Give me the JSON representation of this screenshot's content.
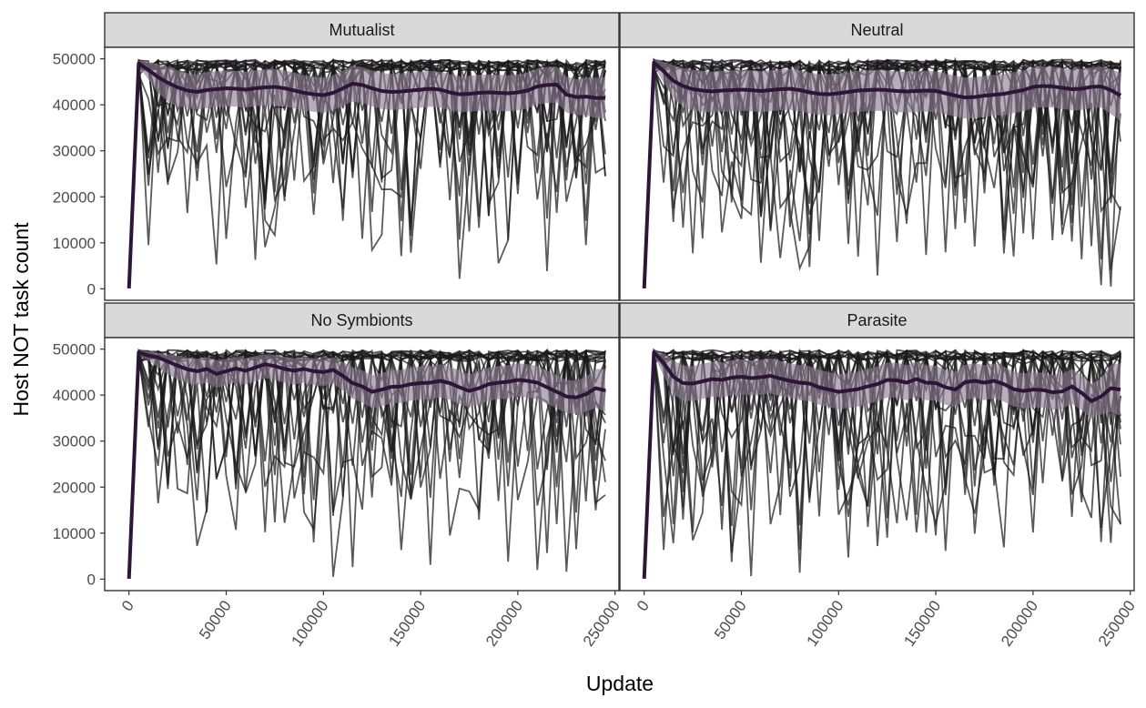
{
  "chart_data": {
    "type": "line",
    "xlabel": "Update",
    "ylabel": "Host NOT task count",
    "xlim": [
      0,
      250000
    ],
    "ylim": [
      0,
      50000
    ],
    "x_ticks": [
      0,
      50000,
      100000,
      150000,
      200000,
      250000
    ],
    "y_ticks": [
      0,
      10000,
      20000,
      30000,
      40000,
      50000
    ],
    "x_tick_labels": [
      "0",
      "50000",
      "100000",
      "150000",
      "200000",
      "250000"
    ],
    "y_tick_labels": [
      "0",
      "10000",
      "20000",
      "30000",
      "40000",
      "50000"
    ],
    "grid": false,
    "facet_layout": "2x2",
    "colors": {
      "mean_line": "#2d1538",
      "ribbon": "#8a7b91",
      "replicate_lines": "#1a1a1a",
      "strip_fill": "#d9d9d9",
      "panel_border": "#333333"
    },
    "panels": [
      {
        "title": "Mutualist",
        "x": [
          0,
          5000,
          10000,
          15000,
          20000,
          25000,
          30000,
          35000,
          40000,
          45000,
          50000,
          55000,
          60000,
          65000,
          70000,
          75000,
          80000,
          85000,
          90000,
          95000,
          100000,
          105000,
          110000,
          115000,
          120000,
          125000,
          130000,
          135000,
          140000,
          145000,
          150000,
          155000,
          160000,
          165000,
          170000,
          175000,
          180000,
          185000,
          190000,
          195000,
          200000,
          205000,
          210000,
          215000,
          220000,
          225000,
          230000,
          235000,
          240000,
          245000
        ],
        "mean": [
          100,
          49000,
          47600,
          46000,
          44800,
          43800,
          43100,
          42800,
          43200,
          43400,
          43600,
          43500,
          43300,
          43600,
          43800,
          43900,
          43600,
          43100,
          42600,
          42300,
          42100,
          42600,
          43600,
          44600,
          44300,
          43600,
          43000,
          42800,
          42900,
          43100,
          43300,
          43500,
          43300,
          42700,
          42300,
          42400,
          42600,
          42700,
          42600,
          42500,
          42700,
          43100,
          44000,
          44300,
          44400,
          42200,
          41700,
          41800,
          41500,
          41500
        ],
        "ribbon_lower": [
          0,
          48300,
          45500,
          42600,
          40700,
          39700,
          39300,
          39000,
          39300,
          39500,
          39700,
          39600,
          39400,
          39700,
          39900,
          40000,
          39700,
          39200,
          38800,
          38500,
          38300,
          38800,
          39800,
          40700,
          40400,
          39700,
          39100,
          38900,
          39000,
          39200,
          39400,
          39600,
          39400,
          38800,
          38400,
          38500,
          38700,
          38800,
          38700,
          38600,
          38800,
          39200,
          40100,
          40400,
          40500,
          38300,
          37800,
          37700,
          37100,
          37000
        ],
        "ribbon_upper": [
          200,
          49700,
          49400,
          48800,
          48200,
          47500,
          46900,
          46600,
          47100,
          47300,
          47500,
          47400,
          47200,
          47500,
          47700,
          47800,
          47500,
          47000,
          46400,
          46100,
          45900,
          46400,
          47400,
          48500,
          48200,
          47500,
          46900,
          46700,
          46800,
          47000,
          47200,
          47400,
          47200,
          46600,
          46200,
          46300,
          46500,
          46600,
          46500,
          46400,
          46600,
          47000,
          47900,
          48200,
          48300,
          46100,
          45600,
          45900,
          45900,
          46000
        ]
      },
      {
        "title": "Neutral",
        "x": [
          0,
          5000,
          10000,
          15000,
          20000,
          25000,
          30000,
          35000,
          40000,
          45000,
          50000,
          55000,
          60000,
          65000,
          70000,
          75000,
          80000,
          85000,
          90000,
          95000,
          100000,
          105000,
          110000,
          115000,
          120000,
          125000,
          130000,
          135000,
          140000,
          145000,
          150000,
          155000,
          160000,
          165000,
          170000,
          175000,
          180000,
          185000,
          190000,
          195000,
          200000,
          205000,
          210000,
          215000,
          220000,
          225000,
          230000,
          235000,
          240000,
          245000
        ],
        "mean": [
          100,
          49200,
          47300,
          45200,
          44100,
          43400,
          43100,
          42900,
          43100,
          43200,
          43300,
          43200,
          43000,
          43200,
          43400,
          43500,
          43200,
          42700,
          42400,
          42300,
          42500,
          42800,
          43100,
          43200,
          43300,
          43200,
          43000,
          42900,
          43000,
          43100,
          43000,
          42500,
          42000,
          41600,
          41700,
          42000,
          42200,
          42400,
          42800,
          43200,
          43900,
          44100,
          44000,
          43700,
          43400,
          43500,
          43900,
          44000,
          43200,
          42000
        ],
        "ribbon_lower": [
          0,
          48500,
          44800,
          41500,
          39600,
          38800,
          38500,
          38300,
          38500,
          38600,
          38700,
          38600,
          38400,
          38600,
          38800,
          38900,
          38600,
          38100,
          37800,
          37700,
          37900,
          38200,
          38500,
          38600,
          38700,
          38600,
          38400,
          38300,
          38400,
          38500,
          38400,
          37900,
          37400,
          37000,
          37100,
          37400,
          37600,
          37800,
          38200,
          38600,
          39300,
          39500,
          39400,
          39100,
          38800,
          38900,
          39300,
          39400,
          38000,
          36500
        ],
        "ribbon_upper": [
          200,
          49800,
          49300,
          48600,
          48000,
          47600,
          47400,
          47200,
          47400,
          47500,
          47600,
          47500,
          47300,
          47500,
          47700,
          47800,
          47500,
          47000,
          46700,
          46600,
          46800,
          47100,
          47400,
          47500,
          47600,
          47500,
          47300,
          47200,
          47300,
          47400,
          47300,
          46800,
          46300,
          45900,
          46000,
          46300,
          46500,
          46700,
          47100,
          47500,
          48200,
          48400,
          48300,
          48000,
          47700,
          47800,
          48200,
          48300,
          47800,
          47000
        ]
      },
      {
        "title": "No Symbionts",
        "x": [
          0,
          5000,
          10000,
          15000,
          20000,
          25000,
          30000,
          35000,
          40000,
          45000,
          50000,
          55000,
          60000,
          65000,
          70000,
          75000,
          80000,
          85000,
          90000,
          95000,
          100000,
          105000,
          110000,
          115000,
          120000,
          125000,
          130000,
          135000,
          140000,
          145000,
          150000,
          155000,
          160000,
          165000,
          170000,
          175000,
          180000,
          185000,
          190000,
          195000,
          200000,
          205000,
          210000,
          215000,
          220000,
          225000,
          230000,
          235000,
          240000,
          245000
        ],
        "mean": [
          100,
          49300,
          48600,
          48200,
          47300,
          46400,
          45600,
          45200,
          45700,
          44600,
          45200,
          45800,
          45300,
          46000,
          46700,
          46300,
          45700,
          45300,
          45700,
          45200,
          45000,
          45500,
          44200,
          42600,
          41900,
          40700,
          41200,
          41800,
          41900,
          42400,
          42600,
          42700,
          43100,
          42600,
          41700,
          40900,
          41500,
          42400,
          42700,
          42900,
          43300,
          43100,
          42700,
          41700,
          40700,
          39700,
          39500,
          40200,
          41500,
          41000
        ],
        "ribbon_lower": [
          0,
          48800,
          47500,
          46100,
          44500,
          43400,
          42600,
          42200,
          42700,
          41600,
          42200,
          42800,
          42300,
          43000,
          43700,
          43300,
          42700,
          42300,
          42700,
          42200,
          42000,
          42500,
          41000,
          39200,
          38400,
          37100,
          37600,
          38200,
          38300,
          38800,
          39000,
          39100,
          39500,
          39000,
          38100,
          37300,
          37900,
          38800,
          39100,
          39300,
          39700,
          39500,
          39100,
          38100,
          37100,
          36100,
          35900,
          36400,
          37200,
          36400
        ],
        "ribbon_upper": [
          200,
          49800,
          49500,
          49200,
          48900,
          48600,
          48200,
          47900,
          48200,
          47600,
          47900,
          48300,
          48000,
          48500,
          48900,
          48700,
          48300,
          48000,
          48300,
          48000,
          47800,
          48200,
          47200,
          46000,
          45400,
          44300,
          44800,
          45400,
          45500,
          46000,
          46200,
          46300,
          46700,
          46200,
          45300,
          44500,
          45100,
          46000,
          46300,
          46500,
          46900,
          46700,
          46300,
          45300,
          44300,
          43300,
          43100,
          44000,
          45700,
          45600
        ]
      },
      {
        "title": "Parasite",
        "x": [
          0,
          5000,
          10000,
          15000,
          20000,
          25000,
          30000,
          35000,
          40000,
          45000,
          50000,
          55000,
          60000,
          65000,
          70000,
          75000,
          80000,
          85000,
          90000,
          95000,
          100000,
          105000,
          110000,
          115000,
          120000,
          125000,
          130000,
          135000,
          140000,
          145000,
          150000,
          155000,
          160000,
          165000,
          170000,
          175000,
          180000,
          185000,
          190000,
          195000,
          200000,
          205000,
          210000,
          215000,
          220000,
          225000,
          230000,
          235000,
          240000,
          245000
        ],
        "mean": [
          100,
          49300,
          47000,
          44000,
          42600,
          42500,
          43000,
          43500,
          43300,
          43800,
          44000,
          43700,
          43900,
          44200,
          43600,
          43100,
          42700,
          42500,
          41700,
          41200,
          40700,
          41000,
          41300,
          41900,
          42400,
          43300,
          43200,
          42700,
          43500,
          42700,
          42600,
          41700,
          41200,
          42800,
          43100,
          42700,
          43100,
          42400,
          41300,
          40900,
          41200,
          41100,
          40600,
          40800,
          41900,
          40500,
          38700,
          39700,
          41500,
          41200
        ],
        "ribbon_lower": [
          0,
          48700,
          44200,
          40200,
          38800,
          38700,
          39200,
          39700,
          39500,
          40000,
          40200,
          39900,
          40100,
          40400,
          39800,
          39300,
          38900,
          38700,
          37900,
          37400,
          36900,
          37200,
          37500,
          38100,
          38600,
          39500,
          39400,
          38900,
          39700,
          38900,
          38800,
          37900,
          37400,
          39000,
          39300,
          38900,
          39300,
          38600,
          37500,
          37100,
          37400,
          37300,
          36800,
          37000,
          38100,
          36700,
          34900,
          35800,
          36400,
          35500
        ],
        "ribbon_upper": [
          200,
          49800,
          49100,
          47600,
          46400,
          46300,
          46800,
          47300,
          47100,
          47600,
          47800,
          47500,
          47700,
          48000,
          47400,
          46900,
          46500,
          46300,
          45500,
          45000,
          44500,
          44800,
          45100,
          45700,
          46200,
          47100,
          47000,
          46500,
          47300,
          46500,
          46400,
          45500,
          45000,
          46600,
          46900,
          46500,
          46900,
          46200,
          45100,
          44700,
          45000,
          44900,
          44400,
          44600,
          45700,
          44300,
          42500,
          43600,
          46600,
          46900
        ]
      }
    ]
  }
}
